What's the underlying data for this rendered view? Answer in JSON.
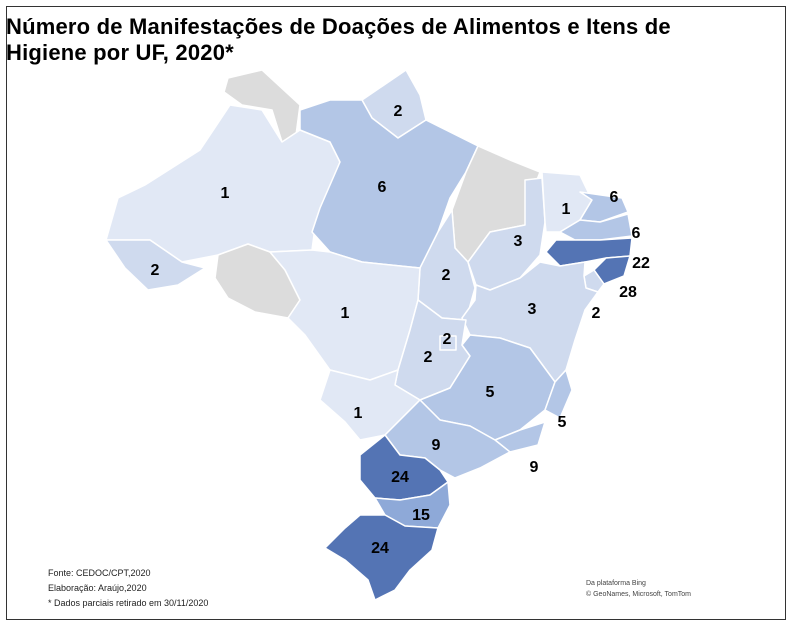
{
  "title_line1": "Número de Manifestações de Doações de Alimentos e Itens de",
  "title_line2": "Higiene por UF, 2020*",
  "colors": {
    "no_data": "#dcdcdc",
    "level_1": "#e1e8f5",
    "level_2": "#cfdaee",
    "level_3": "#b3c6e6",
    "level_4": "#8ea9d8",
    "level_5": "#5474b4",
    "border": "#ffffff"
  },
  "states": [
    {
      "uf": "RR",
      "value": null
    },
    {
      "uf": "AP",
      "value": 2
    },
    {
      "uf": "AM",
      "value": 1
    },
    {
      "uf": "PA",
      "value": 6
    },
    {
      "uf": "AC",
      "value": 2
    },
    {
      "uf": "RO",
      "value": null
    },
    {
      "uf": "MA",
      "value": null
    },
    {
      "uf": "TO",
      "value": 2
    },
    {
      "uf": "PI",
      "value": 3
    },
    {
      "uf": "CE",
      "value": 1
    },
    {
      "uf": "RN",
      "value": 6
    },
    {
      "uf": "PB",
      "value": 6
    },
    {
      "uf": "PE",
      "value": 22
    },
    {
      "uf": "AL",
      "value": 28
    },
    {
      "uf": "SE",
      "value": 2
    },
    {
      "uf": "BA",
      "value": 3
    },
    {
      "uf": "MT",
      "value": 1
    },
    {
      "uf": "DF",
      "value": 2
    },
    {
      "uf": "GO",
      "value": 2
    },
    {
      "uf": "MS",
      "value": 1
    },
    {
      "uf": "MG",
      "value": 5
    },
    {
      "uf": "ES",
      "value": 5
    },
    {
      "uf": "RJ",
      "value": 9
    },
    {
      "uf": "SP",
      "value": 9
    },
    {
      "uf": "PR",
      "value": 24
    },
    {
      "uf": "SC",
      "value": 15
    },
    {
      "uf": "RS",
      "value": 24
    }
  ],
  "credits_left": [
    "Fonte: CEDOC/CPT,2020",
    "Elaboração: Araújo,2020",
    "* Dados parciais retirado em 30/11/2020"
  ],
  "credits_right": [
    "Da plataforma Bing",
    "© GeoNames, Microsoft, TomTom"
  ]
}
